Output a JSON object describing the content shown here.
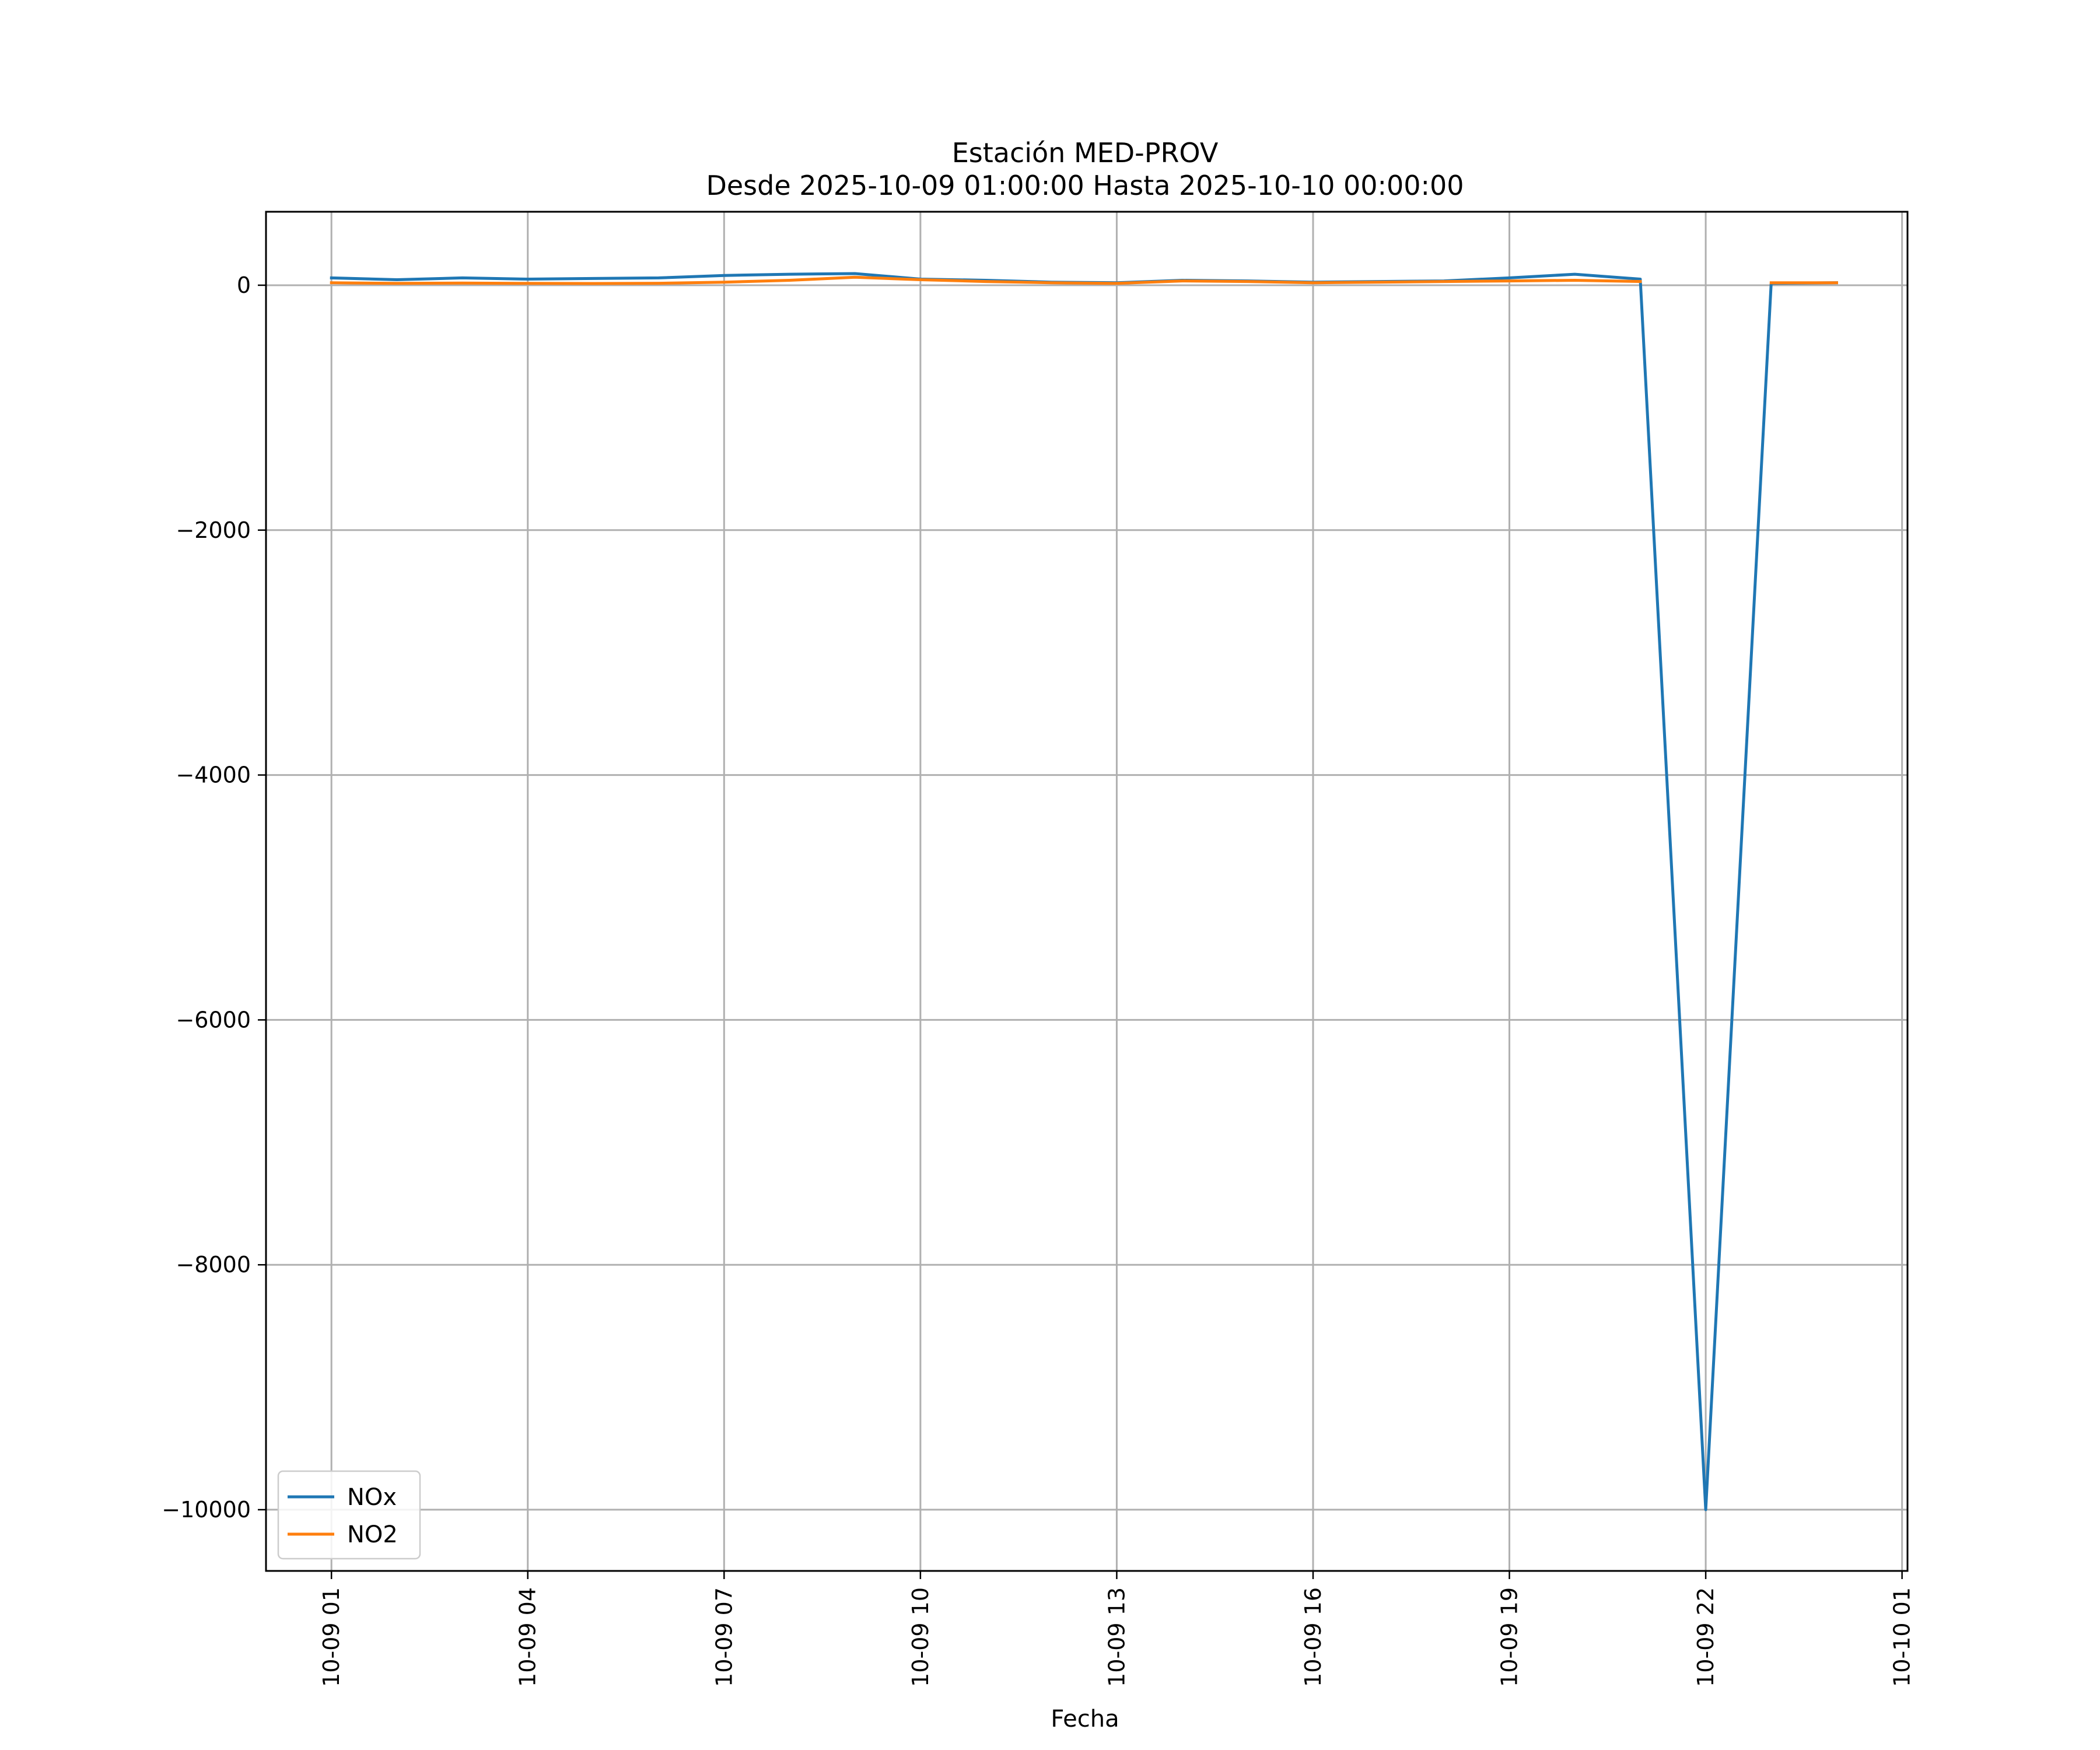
{
  "chart_data": {
    "type": "line",
    "title": "Estación MED-PROV",
    "subtitle": "Desde 2025-10-09 01:00:00 Hasta 2025-10-10 00:00:00",
    "xlabel": "Fecha",
    "ylabel": "",
    "x": [
      "2025-10-09 01:00",
      "2025-10-09 02:00",
      "2025-10-09 03:00",
      "2025-10-09 04:00",
      "2025-10-09 05:00",
      "2025-10-09 06:00",
      "2025-10-09 07:00",
      "2025-10-09 08:00",
      "2025-10-09 09:00",
      "2025-10-09 10:00",
      "2025-10-09 11:00",
      "2025-10-09 12:00",
      "2025-10-09 13:00",
      "2025-10-09 14:00",
      "2025-10-09 15:00",
      "2025-10-09 16:00",
      "2025-10-09 17:00",
      "2025-10-09 18:00",
      "2025-10-09 19:00",
      "2025-10-09 20:00",
      "2025-10-09 21:00",
      "2025-10-09 22:00",
      "2025-10-09 23:00",
      "2025-10-10 00:00"
    ],
    "xlim": [
      "2025-10-09 00:00",
      "2025-10-10 01:05"
    ],
    "ylim": [
      -10500,
      600
    ],
    "xticks": [
      "2025-10-09 01:00",
      "2025-10-09 04:00",
      "2025-10-09 07:00",
      "2025-10-09 10:00",
      "2025-10-09 13:00",
      "2025-10-09 16:00",
      "2025-10-09 19:00",
      "2025-10-09 22:00",
      "2025-10-10 01:00"
    ],
    "xtick_labels": [
      "10-09 01",
      "10-09 04",
      "10-09 07",
      "10-09 10",
      "10-09 13",
      "10-09 16",
      "10-09 19",
      "10-09 22",
      "10-10 01"
    ],
    "yticks": [
      0,
      -2000,
      -4000,
      -6000,
      -8000,
      -10000
    ],
    "ytick_labels": [
      "0",
      "−2000",
      "−4000",
      "−6000",
      "−8000",
      "−10000"
    ],
    "grid": true,
    "legend_position": "lower-left",
    "series": [
      {
        "name": "NOx",
        "color": "#1f77b4",
        "values": [
          60,
          45,
          60,
          50,
          55,
          60,
          80,
          90,
          95,
          50,
          40,
          25,
          20,
          40,
          35,
          25,
          30,
          35,
          60,
          90,
          50,
          -10000,
          15,
          20
        ]
      },
      {
        "name": "NO2",
        "color": "#ff7f0e",
        "values": [
          20,
          15,
          18,
          15,
          14,
          16,
          25,
          40,
          65,
          45,
          30,
          20,
          15,
          35,
          30,
          20,
          25,
          30,
          35,
          40,
          30,
          null,
          20,
          20
        ]
      }
    ]
  }
}
